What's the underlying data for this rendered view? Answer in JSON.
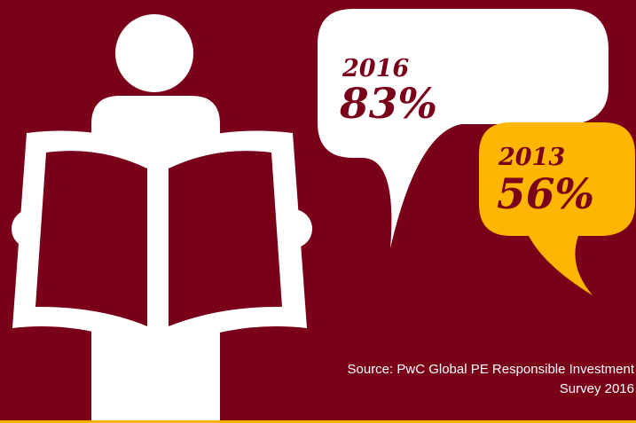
{
  "colors": {
    "background": "#7a0019",
    "figure": "#ffffff",
    "bubble_2016": "#ffffff",
    "bubble_2013": "#ffb600",
    "text_dark": "#7a0019",
    "source_text": "#ffffff",
    "bottom_line": "#f3b400"
  },
  "icons": {
    "figure": "person-reading-icon",
    "book": "open-book-icon",
    "bubble_large": "speech-bubble-icon",
    "bubble_small": "speech-bubble-icon"
  },
  "chart_data": {
    "type": "bar",
    "categories": [
      "2016",
      "2013"
    ],
    "values": [
      83,
      56
    ],
    "labels": [
      "83%",
      "56%"
    ],
    "unit": "%",
    "title": "",
    "xlabel": "",
    "ylabel": ""
  },
  "source": {
    "line1": "Source: PwC Global PE Responsible Investment",
    "line2": "Survey 2016"
  }
}
